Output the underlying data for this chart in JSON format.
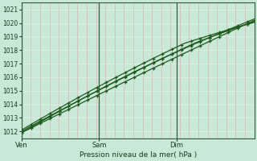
{
  "xlabel": "Pression niveau de la mer( hPa )",
  "bg_color": "#c8e8d8",
  "grid_h_color": "#e0f0e8",
  "grid_v_color": "#e8b0b0",
  "line_color": "#1a5c1a",
  "ylim": [
    1011.5,
    1021.5
  ],
  "yticks": [
    1012,
    1013,
    1014,
    1015,
    1016,
    1017,
    1018,
    1019,
    1020,
    1021
  ],
  "day_labels": [
    "Ven",
    "Sam",
    "Dim"
  ],
  "day_positions": [
    0.0,
    0.333,
    0.667
  ],
  "vline_color": "#3a5a3a",
  "total_steps": 100
}
